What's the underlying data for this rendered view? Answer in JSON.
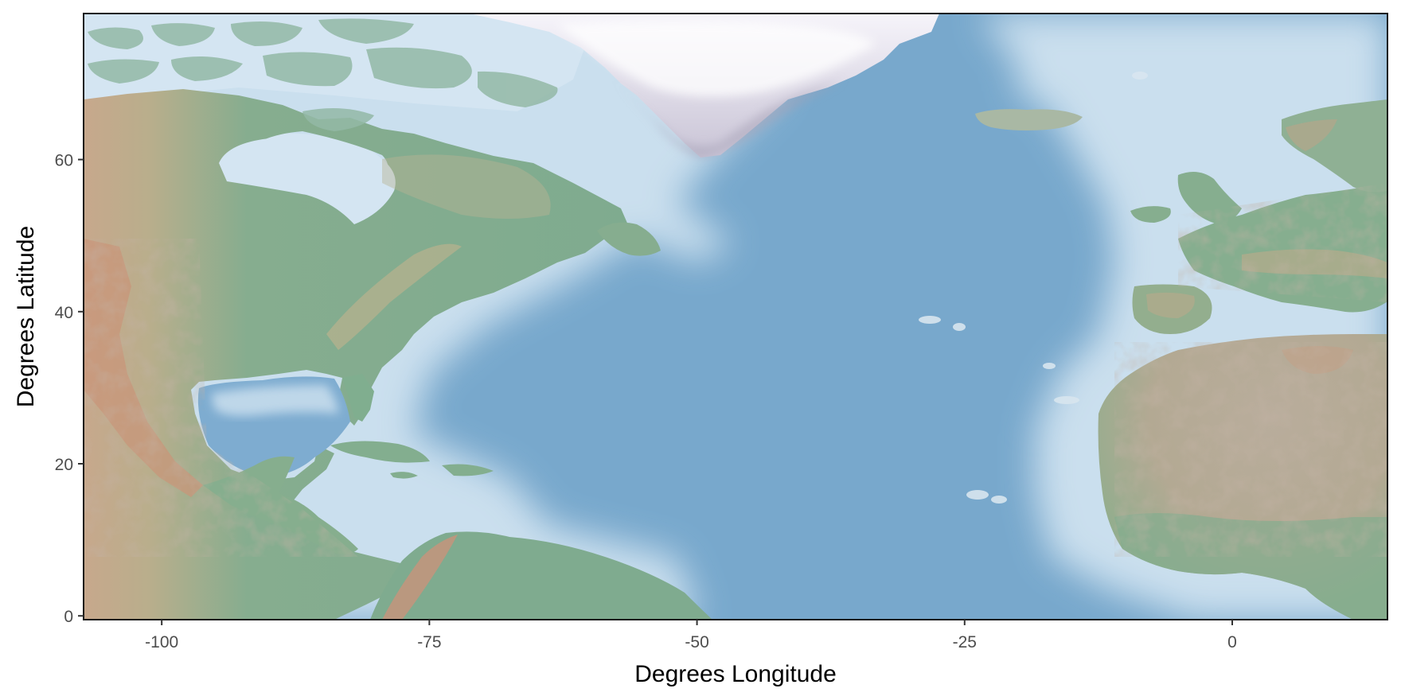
{
  "map": {
    "type": "relief-map",
    "region": "North Atlantic",
    "xlabel": "Degrees Longitude",
    "ylabel": "Degrees Latitude",
    "xlim": [
      -107.3,
      14.5
    ],
    "ylim": [
      -0.5,
      79.2
    ],
    "x_ticks": [
      {
        "value": -100,
        "label": "-100"
      },
      {
        "value": -75,
        "label": "-75"
      },
      {
        "value": -50,
        "label": "-50"
      },
      {
        "value": -25,
        "label": "-25"
      },
      {
        "value": 0,
        "label": "0"
      }
    ],
    "y_ticks": [
      {
        "value": 0,
        "label": "0"
      },
      {
        "value": 20,
        "label": "20"
      },
      {
        "value": 40,
        "label": "40"
      },
      {
        "value": 60,
        "label": "60"
      }
    ],
    "colors": {
      "ocean": "#78a8cc",
      "shallow_water": "#d3e4f1",
      "lowland": "#7fad8e",
      "upland": "#c9b48e",
      "mountain": "#c98f78",
      "desert": "#b6a996",
      "ice": "#f2eff7",
      "frame": "#1a1a1a"
    }
  }
}
